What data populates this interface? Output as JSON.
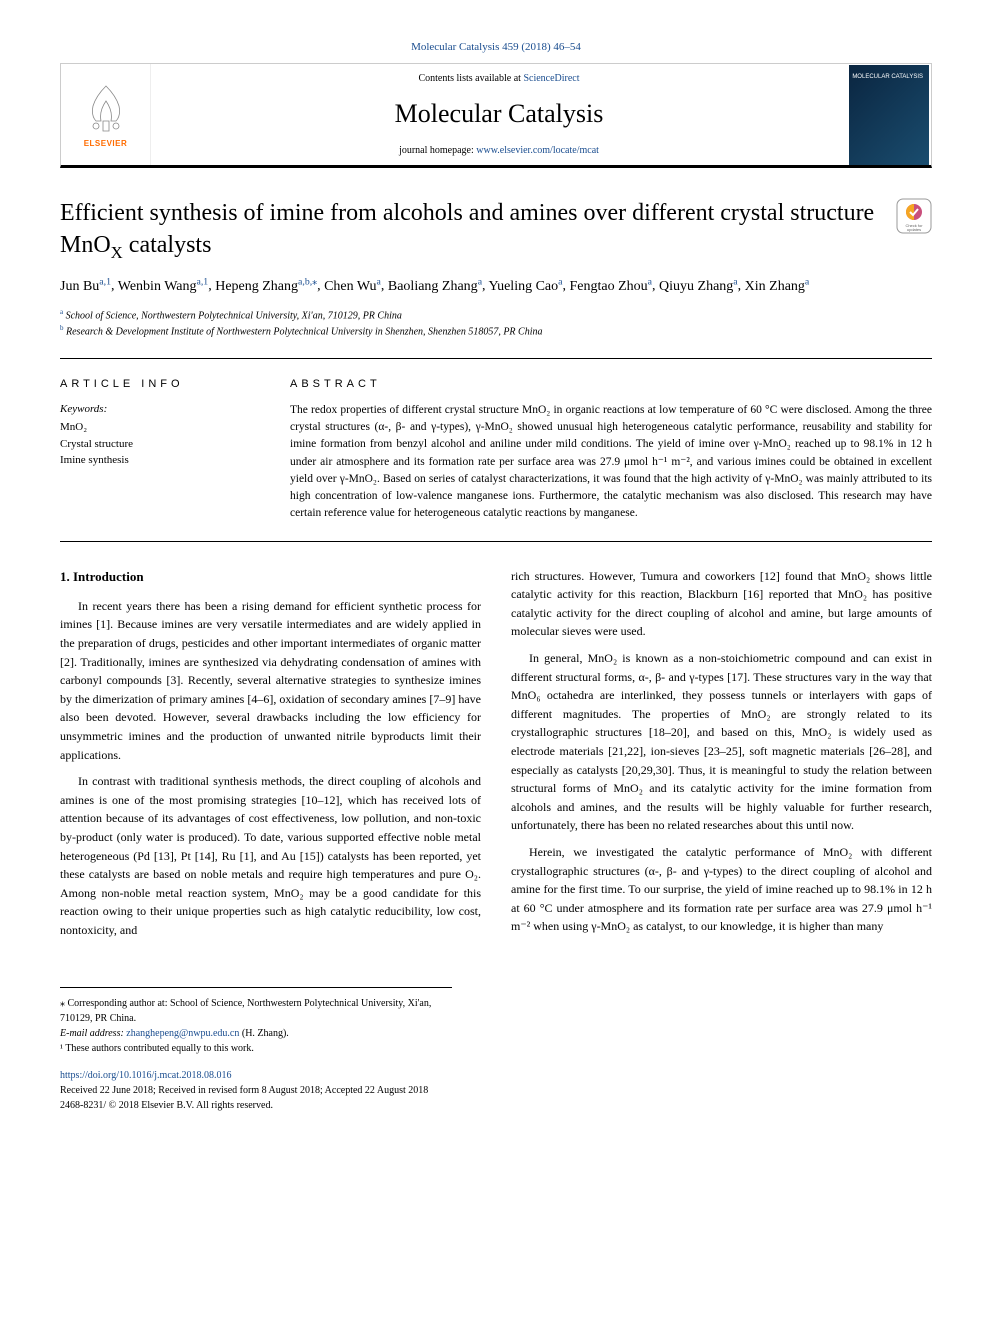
{
  "journal": {
    "citation": "Molecular Catalysis 459 (2018) 46–54",
    "contents_prefix": "Contents lists available at ",
    "contents_link": "ScienceDirect",
    "title": "Molecular Catalysis",
    "homepage_prefix": "journal homepage: ",
    "homepage_link": "www.elsevier.com/locate/mcat",
    "elsevier_label": "ELSEVIER",
    "cover_label": "MOLECULAR CATALYSIS"
  },
  "article": {
    "title_pre": "Efficient synthesis of imine from alcohols and amines over different crystal structure MnO",
    "title_sub": "X",
    "title_post": " catalysts",
    "check_updates": "Check for updates"
  },
  "authors": [
    {
      "name": "Jun Bu",
      "marks": "a,1"
    },
    {
      "name": "Wenbin Wang",
      "marks": "a,1"
    },
    {
      "name": "Hepeng Zhang",
      "marks": "a,b,⁎"
    },
    {
      "name": "Chen Wu",
      "marks": "a"
    },
    {
      "name": "Baoliang Zhang",
      "marks": "a"
    },
    {
      "name": "Yueling Cao",
      "marks": "a"
    },
    {
      "name": "Fengtao Zhou",
      "marks": "a"
    },
    {
      "name": "Qiuyu Zhang",
      "marks": "a"
    },
    {
      "name": "Xin Zhang",
      "marks": "a"
    }
  ],
  "affiliations": [
    {
      "mark": "a",
      "text": "School of Science, Northwestern Polytechnical University, Xi'an, 710129, PR China"
    },
    {
      "mark": "b",
      "text": "Research & Development Institute of Northwestern Polytechnical University in Shenzhen, Shenzhen 518057, PR China"
    }
  ],
  "article_info": {
    "label": "ARTICLE INFO",
    "keywords_label": "Keywords:",
    "keywords": [
      "MnO₂",
      "Crystal structure",
      "Imine synthesis"
    ]
  },
  "abstract": {
    "label": "ABSTRACT",
    "text": "The redox properties of different crystal structure MnO₂ in organic reactions at low temperature of 60 °C were disclosed. Among the three crystal structures (α-, β- and γ-types), γ-MnO₂ showed unusual high heterogeneous catalytic performance, reusability and stability for imine formation from benzyl alcohol and aniline under mild conditions. The yield of imine over γ-MnO₂ reached up to 98.1% in 12 h under air atmosphere and its formation rate per surface area was 27.9 μmol h⁻¹ m⁻², and various imines could be obtained in excellent yield over γ-MnO₂. Based on series of catalyst characterizations, it was found that the high activity of γ-MnO₂ was mainly attributed to its high concentration of low-valence manganese ions. Furthermore, the catalytic mechanism was also disclosed. This research may have certain reference value for heterogeneous catalytic reactions by manganese."
  },
  "body": {
    "section1_heading": "1. Introduction",
    "col1": {
      "p1": "In recent years there has been a rising demand for efficient synthetic process for imines [1]. Because imines are very versatile intermediates and are widely applied in the preparation of drugs, pesticides and other important intermediates of organic matter [2]. Traditionally, imines are synthesized via dehydrating condensation of amines with carbonyl compounds [3]. Recently, several alternative strategies to synthesize imines by the dimerization of primary amines [4–6], oxidation of secondary amines [7–9] have also been devoted. However, several drawbacks including the low efficiency for unsymmetric imines and the production of unwanted nitrile byproducts limit their applications.",
      "p2": "In contrast with traditional synthesis methods, the direct coupling of alcohols and amines is one of the most promising strategies [10–12], which has received lots of attention because of its advantages of cost effectiveness, low pollution, and non-toxic by-product (only water is produced). To date, various supported effective noble metal heterogeneous (Pd [13], Pt [14], Ru [1], and Au [15]) catalysts has been reported, yet these catalysts are based on noble metals and require high temperatures and pure O₂. Among non-noble metal reaction system, MnO₂ may be a good candidate for this reaction owing to their unique properties such as high catalytic reducibility, low cost, nontoxicity, and"
    },
    "col2": {
      "p1": "rich structures. However, Tumura and coworkers [12] found that MnO₂ shows little catalytic activity for this reaction, Blackburn [16] reported that MnO₂ has positive catalytic activity for the direct coupling of alcohol and amine, but large amounts of molecular sieves were used.",
      "p2": "In general, MnO₂ is known as a non-stoichiometric compound and can exist in different structural forms, α-, β- and γ-types [17]. These structures vary in the way that MnO₆ octahedra are interlinked, they possess tunnels or interlayers with gaps of different magnitudes. The properties of MnO₂ are strongly related to its crystallographic structures [18–20], and based on this, MnO₂ is widely used as electrode materials [21,22], ion-sieves [23–25], soft magnetic materials [26–28], and especially as catalysts [20,29,30]. Thus, it is meaningful to study the relation between structural forms of MnO₂ and its catalytic activity for the imine formation from alcohols and amines, and the results will be highly valuable for further research, unfortunately, there has been no related researches about this until now.",
      "p3": "Herein, we investigated the catalytic performance of MnO₂ with different crystallographic structures (α-, β- and γ-types) to the direct coupling of alcohol and amine for the first time. To our surprise, the yield of imine reached up to 98.1% in 12 h at 60 °C under atmosphere and its formation rate per surface area was 27.9 μmol h⁻¹ m⁻² when using γ-MnO₂ as catalyst, to our knowledge, it is higher than many"
    }
  },
  "footnotes": {
    "corresponding": "⁎ Corresponding author at: School of Science, Northwestern Polytechnical University, Xi'an, 710129, PR China.",
    "email_label": "E-mail address: ",
    "email": "zhanghepeng@nwpu.edu.cn",
    "email_suffix": " (H. Zhang).",
    "contrib": "¹ These authors contributed equally to this work."
  },
  "footer": {
    "doi": "https://doi.org/10.1016/j.mcat.2018.08.016",
    "dates": "Received 22 June 2018; Received in revised form 8 August 2018; Accepted 22 August 2018",
    "copyright": "2468-8231/ © 2018 Elsevier B.V. All rights reserved."
  },
  "colors": {
    "link": "#1a4d8f",
    "elsevier_orange": "#ff6b00",
    "cover_bg_start": "#0a2540",
    "cover_bg_end": "#1a4d6f"
  }
}
